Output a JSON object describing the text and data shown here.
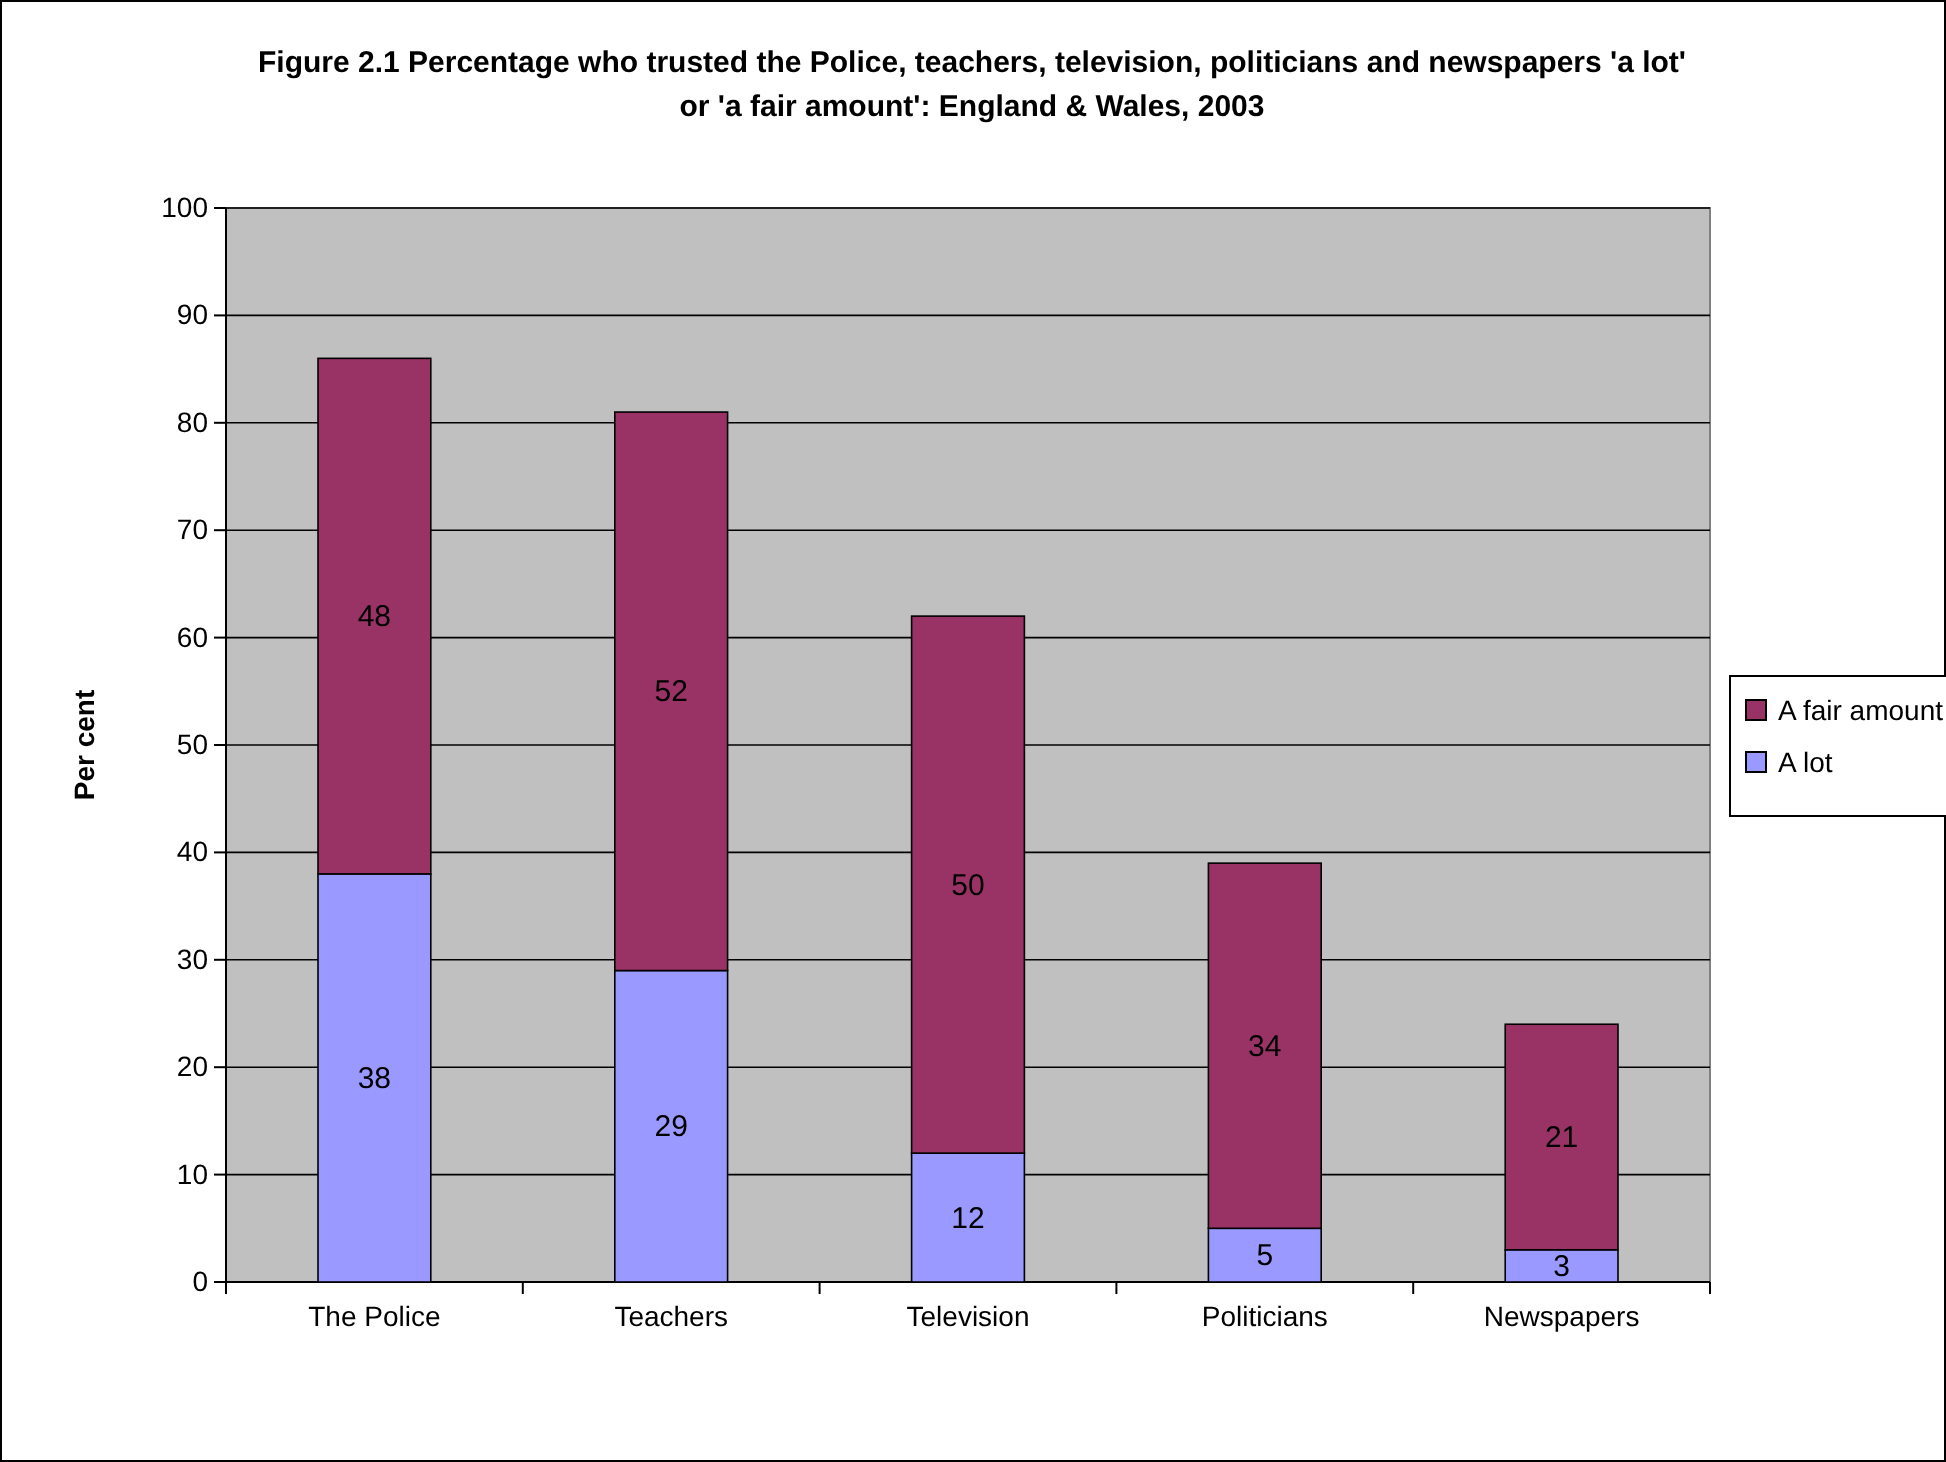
{
  "chart_data": {
    "type": "bar",
    "title": "Figure 2.1 Percentage who trusted the Police, teachers, television, politicians and newspapers 'a lot' or 'a fair amount': England & Wales, 2003",
    "ylabel": "Per cent",
    "categories": [
      "The Police",
      "Teachers",
      "Television",
      "Politicians",
      "Newspapers"
    ],
    "stacked": true,
    "data_labels": true,
    "legend": "right",
    "grid": "y",
    "ylim": [
      0,
      100
    ],
    "yticks": [
      0,
      10,
      20,
      30,
      40,
      50,
      60,
      70,
      80,
      90,
      100
    ],
    "series": [
      {
        "name": "A lot",
        "color": "#9999ff",
        "values": [
          38,
          29,
          12,
          5,
          3
        ]
      },
      {
        "name": "A fair amount",
        "color": "#993366",
        "values": [
          48,
          52,
          50,
          34,
          21
        ]
      }
    ]
  }
}
